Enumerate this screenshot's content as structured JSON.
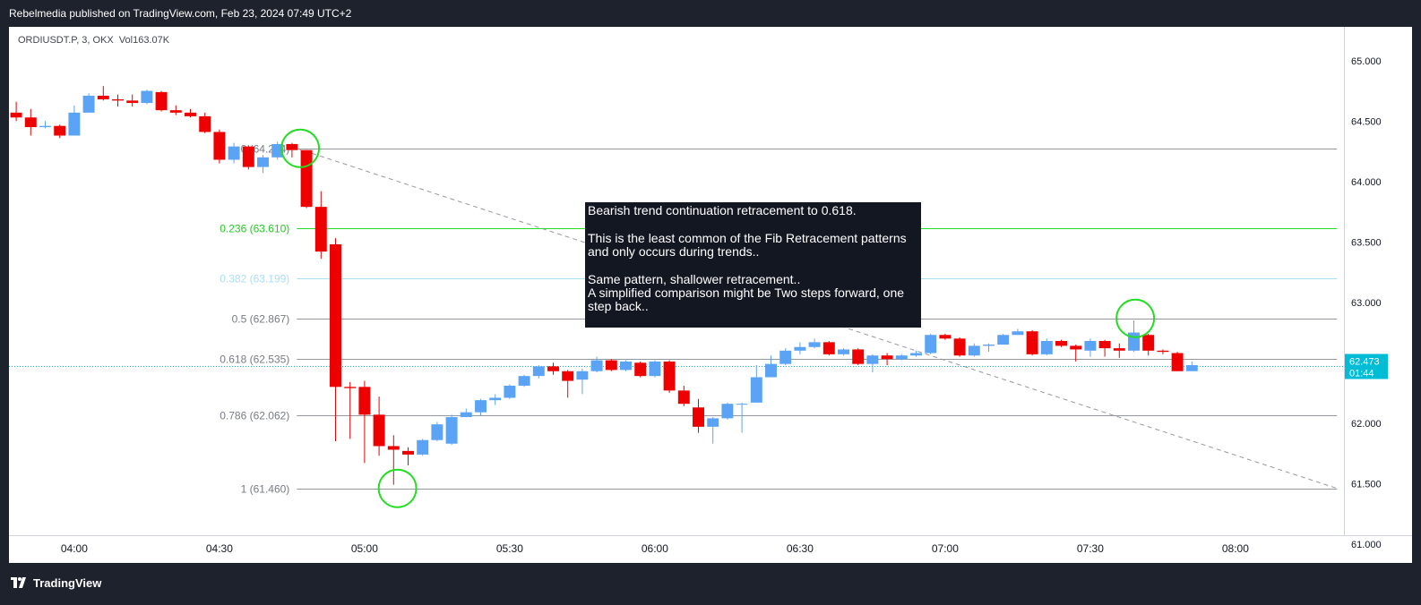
{
  "header": {
    "published_line": "Rebelmedia published on TradingView.com, Feb 23, 2024 07:49 UTC+2"
  },
  "legend": {
    "symbol": "ORDIUSDT.P, 3, OKX",
    "volume_label": "Vol",
    "volume_value": "163.07K"
  },
  "annotation": {
    "paragraphs": [
      "Bearish trend continuation retracement to 0.618.",
      "This is the least common of the Fib Retracement patterns and only occurs during trends..",
      "Same pattern, shallower retracement..\nA simplified comparison might be Two steps forward, one step back.."
    ]
  },
  "footer": {
    "brand": "TradingView"
  },
  "colors": {
    "up": "#5ba4f5",
    "down": "#ee0000",
    "fib_level": "#9598a1",
    "fib_0236": "#22dd22",
    "fib_0382": "#a9def2",
    "circle": "#22dd22",
    "last_price_bg": "#00bcd4",
    "background": "#ffffff",
    "frame": "#1e222d"
  },
  "chart_data": {
    "type": "candlestick",
    "symbol": "ORDIUSDT.P",
    "interval": "3",
    "exchange": "OKX",
    "ylim": [
      60.94,
      65.28
    ],
    "y_ticks": [
      "61.000",
      "61.500",
      "62.000",
      "62.500",
      "63.000",
      "63.500",
      "64.000",
      "64.500",
      "65.000"
    ],
    "y_tick_values": [
      61.0,
      61.5,
      62.0,
      62.5,
      63.0,
      63.5,
      64.0,
      64.5,
      65.0
    ],
    "x_ticks": [
      "04:00",
      "04:30",
      "05:00",
      "05:30",
      "06:00",
      "06:30",
      "07:00",
      "07:30",
      "08:00"
    ],
    "x_tick_minutes": [
      240,
      270,
      300,
      330,
      360,
      390,
      420,
      450,
      480
    ],
    "xlim_minutes": [
      226.5,
      501.5
    ],
    "last_price": "62.473",
    "last_price_value": 62.473,
    "countdown": "01:44",
    "candle_width_minutes": 2.4,
    "candles": [
      {
        "t": 228,
        "o": 64.57,
        "h": 64.66,
        "l": 64.5,
        "c": 64.53
      },
      {
        "t": 231,
        "o": 64.53,
        "h": 64.6,
        "l": 64.38,
        "c": 64.45
      },
      {
        "t": 234,
        "o": 64.45,
        "h": 64.5,
        "l": 64.44,
        "c": 64.46
      },
      {
        "t": 237,
        "o": 64.46,
        "h": 64.47,
        "l": 64.36,
        "c": 64.38
      },
      {
        "t": 240,
        "o": 64.38,
        "h": 64.63,
        "l": 64.38,
        "c": 64.57
      },
      {
        "t": 243,
        "o": 64.57,
        "h": 64.73,
        "l": 64.57,
        "c": 64.71
      },
      {
        "t": 246,
        "o": 64.71,
        "h": 64.79,
        "l": 64.67,
        "c": 64.68
      },
      {
        "t": 249,
        "o": 64.68,
        "h": 64.72,
        "l": 64.62,
        "c": 64.67
      },
      {
        "t": 252,
        "o": 64.67,
        "h": 64.72,
        "l": 64.62,
        "c": 64.65
      },
      {
        "t": 255,
        "o": 64.65,
        "h": 64.76,
        "l": 64.64,
        "c": 64.75
      },
      {
        "t": 258,
        "o": 64.74,
        "h": 64.75,
        "l": 64.58,
        "c": 64.59
      },
      {
        "t": 261,
        "o": 64.59,
        "h": 64.63,
        "l": 64.55,
        "c": 64.57
      },
      {
        "t": 264,
        "o": 64.57,
        "h": 64.6,
        "l": 64.53,
        "c": 64.54
      },
      {
        "t": 267,
        "o": 64.54,
        "h": 64.57,
        "l": 64.4,
        "c": 64.41
      },
      {
        "t": 270,
        "o": 64.41,
        "h": 64.43,
        "l": 64.15,
        "c": 64.18
      },
      {
        "t": 273,
        "o": 64.18,
        "h": 64.32,
        "l": 64.15,
        "c": 64.29
      },
      {
        "t": 276,
        "o": 64.29,
        "h": 64.3,
        "l": 64.1,
        "c": 64.12
      },
      {
        "t": 279,
        "o": 64.12,
        "h": 64.22,
        "l": 64.07,
        "c": 64.2
      },
      {
        "t": 282,
        "o": 64.2,
        "h": 64.33,
        "l": 64.18,
        "c": 64.31
      },
      {
        "t": 285,
        "o": 64.31,
        "h": 64.32,
        "l": 64.2,
        "c": 64.26
      },
      {
        "t": 288,
        "o": 64.26,
        "h": 64.26,
        "l": 63.78,
        "c": 63.79
      },
      {
        "t": 291,
        "o": 63.79,
        "h": 63.92,
        "l": 63.36,
        "c": 63.42
      },
      {
        "t": 294,
        "o": 63.48,
        "h": 63.53,
        "l": 61.85,
        "c": 62.3
      },
      {
        "t": 297,
        "o": 62.3,
        "h": 62.34,
        "l": 61.87,
        "c": 62.29
      },
      {
        "t": 300,
        "o": 62.3,
        "h": 62.35,
        "l": 61.67,
        "c": 62.07
      },
      {
        "t": 303,
        "o": 62.07,
        "h": 62.22,
        "l": 61.73,
        "c": 61.81
      },
      {
        "t": 306,
        "o": 61.81,
        "h": 61.9,
        "l": 61.49,
        "c": 61.78
      },
      {
        "t": 309,
        "o": 61.77,
        "h": 61.8,
        "l": 61.65,
        "c": 61.74
      },
      {
        "t": 312,
        "o": 61.74,
        "h": 61.87,
        "l": 61.73,
        "c": 61.86
      },
      {
        "t": 315,
        "o": 61.86,
        "h": 62.01,
        "l": 61.85,
        "c": 61.99
      },
      {
        "t": 318,
        "o": 61.83,
        "h": 62.07,
        "l": 61.82,
        "c": 62.05
      },
      {
        "t": 321,
        "o": 62.05,
        "h": 62.12,
        "l": 62.05,
        "c": 62.09
      },
      {
        "t": 324,
        "o": 62.09,
        "h": 62.2,
        "l": 62.06,
        "c": 62.19
      },
      {
        "t": 327,
        "o": 62.19,
        "h": 62.24,
        "l": 62.15,
        "c": 62.21
      },
      {
        "t": 330,
        "o": 62.21,
        "h": 62.32,
        "l": 62.2,
        "c": 62.31
      },
      {
        "t": 333,
        "o": 62.31,
        "h": 62.4,
        "l": 62.3,
        "c": 62.39
      },
      {
        "t": 336,
        "o": 62.39,
        "h": 62.48,
        "l": 62.37,
        "c": 62.47
      },
      {
        "t": 339,
        "o": 62.47,
        "h": 62.5,
        "l": 62.4,
        "c": 62.43
      },
      {
        "t": 342,
        "o": 62.43,
        "h": 62.44,
        "l": 62.21,
        "c": 62.35
      },
      {
        "t": 345,
        "o": 62.36,
        "h": 62.45,
        "l": 62.24,
        "c": 62.43
      },
      {
        "t": 348,
        "o": 62.43,
        "h": 62.55,
        "l": 62.42,
        "c": 62.52
      },
      {
        "t": 351,
        "o": 62.52,
        "h": 62.53,
        "l": 62.43,
        "c": 62.44
      },
      {
        "t": 354,
        "o": 62.44,
        "h": 62.52,
        "l": 62.43,
        "c": 62.51
      },
      {
        "t": 357,
        "o": 62.5,
        "h": 62.51,
        "l": 62.38,
        "c": 62.39
      },
      {
        "t": 360,
        "o": 62.39,
        "h": 62.52,
        "l": 62.38,
        "c": 62.51
      },
      {
        "t": 363,
        "o": 62.51,
        "h": 62.52,
        "l": 62.25,
        "c": 62.27
      },
      {
        "t": 366,
        "o": 62.27,
        "h": 62.31,
        "l": 62.14,
        "c": 62.16
      },
      {
        "t": 369,
        "o": 62.13,
        "h": 62.2,
        "l": 61.92,
        "c": 61.97
      },
      {
        "t": 372,
        "o": 61.97,
        "h": 62.05,
        "l": 61.83,
        "c": 62.04
      },
      {
        "t": 375,
        "o": 62.04,
        "h": 62.17,
        "l": 62.03,
        "c": 62.16
      },
      {
        "t": 378,
        "o": 62.16,
        "h": 62.17,
        "l": 61.92,
        "c": 62.16
      },
      {
        "t": 381,
        "o": 62.17,
        "h": 62.48,
        "l": 62.17,
        "c": 62.38
      },
      {
        "t": 384,
        "o": 62.38,
        "h": 62.56,
        "l": 62.38,
        "c": 62.49
      },
      {
        "t": 387,
        "o": 62.49,
        "h": 62.62,
        "l": 62.48,
        "c": 62.6
      },
      {
        "t": 390,
        "o": 62.6,
        "h": 62.67,
        "l": 62.57,
        "c": 62.63
      },
      {
        "t": 393,
        "o": 62.63,
        "h": 62.7,
        "l": 62.62,
        "c": 62.67
      },
      {
        "t": 396,
        "o": 62.67,
        "h": 62.68,
        "l": 62.56,
        "c": 62.57
      },
      {
        "t": 399,
        "o": 62.57,
        "h": 62.62,
        "l": 62.56,
        "c": 62.61
      },
      {
        "t": 402,
        "o": 62.61,
        "h": 62.62,
        "l": 62.48,
        "c": 62.49
      },
      {
        "t": 405,
        "o": 62.49,
        "h": 62.57,
        "l": 62.42,
        "c": 62.56
      },
      {
        "t": 408,
        "o": 62.56,
        "h": 62.58,
        "l": 62.48,
        "c": 62.53
      },
      {
        "t": 411,
        "o": 62.53,
        "h": 62.57,
        "l": 62.52,
        "c": 62.56
      },
      {
        "t": 414,
        "o": 62.56,
        "h": 62.6,
        "l": 62.55,
        "c": 62.58
      },
      {
        "t": 417,
        "o": 62.58,
        "h": 62.74,
        "l": 62.57,
        "c": 62.73
      },
      {
        "t": 420,
        "o": 62.73,
        "h": 62.74,
        "l": 62.69,
        "c": 62.7
      },
      {
        "t": 423,
        "o": 62.7,
        "h": 62.71,
        "l": 62.55,
        "c": 62.56
      },
      {
        "t": 426,
        "o": 62.56,
        "h": 62.66,
        "l": 62.55,
        "c": 62.64
      },
      {
        "t": 429,
        "o": 62.64,
        "h": 62.66,
        "l": 62.59,
        "c": 62.65
      },
      {
        "t": 432,
        "o": 62.65,
        "h": 62.74,
        "l": 62.65,
        "c": 62.73
      },
      {
        "t": 435,
        "o": 62.73,
        "h": 62.78,
        "l": 62.73,
        "c": 62.76
      },
      {
        "t": 438,
        "o": 62.76,
        "h": 62.77,
        "l": 62.56,
        "c": 62.57
      },
      {
        "t": 441,
        "o": 62.57,
        "h": 62.7,
        "l": 62.56,
        "c": 62.68
      },
      {
        "t": 444,
        "o": 62.68,
        "h": 62.69,
        "l": 62.63,
        "c": 62.64
      },
      {
        "t": 447,
        "o": 62.64,
        "h": 62.65,
        "l": 62.51,
        "c": 62.61
      },
      {
        "t": 450,
        "o": 62.6,
        "h": 62.7,
        "l": 62.55,
        "c": 62.68
      },
      {
        "t": 453,
        "o": 62.68,
        "h": 62.69,
        "l": 62.55,
        "c": 62.62
      },
      {
        "t": 456,
        "o": 62.62,
        "h": 62.66,
        "l": 62.54,
        "c": 62.6
      },
      {
        "t": 459,
        "o": 62.6,
        "h": 62.85,
        "l": 62.59,
        "c": 62.75
      },
      {
        "t": 462,
        "o": 62.73,
        "h": 62.74,
        "l": 62.56,
        "c": 62.6
      },
      {
        "t": 465,
        "o": 62.6,
        "h": 62.61,
        "l": 62.57,
        "c": 62.59
      },
      {
        "t": 468,
        "o": 62.58,
        "h": 62.59,
        "l": 62.43,
        "c": 62.43
      },
      {
        "t": 471,
        "o": 62.43,
        "h": 62.51,
        "l": 62.43,
        "c": 62.48
      }
    ],
    "fib_levels": [
      {
        "ratio": "0",
        "price": 64.274,
        "label": "0 (64.274)"
      },
      {
        "ratio": "0.236",
        "price": 63.61,
        "label": "0.236 (63.610)"
      },
      {
        "ratio": "0.382",
        "price": 63.199,
        "label": "0.382 (63.199)"
      },
      {
        "ratio": "0.5",
        "price": 62.867,
        "label": "0.5 (62.867)"
      },
      {
        "ratio": "0.618",
        "price": 62.535,
        "label": "0.618 (62.535)"
      },
      {
        "ratio": "0.786",
        "price": 62.062,
        "label": "0.786 (62.062)"
      },
      {
        "ratio": "1",
        "price": 61.46,
        "label": "1 (61.460)"
      }
    ],
    "fib_line_start_minutes": 286,
    "fib_line_end_minutes": 501,
    "trend_line": {
      "start": {
        "t": 286,
        "p": 64.274
      },
      "end": {
        "t": 501,
        "p": 61.46
      }
    },
    "circles": [
      {
        "t": 286.7,
        "p": 64.274
      },
      {
        "t": 306.8,
        "p": 61.46
      },
      {
        "t": 459.3,
        "p": 62.867
      }
    ]
  }
}
